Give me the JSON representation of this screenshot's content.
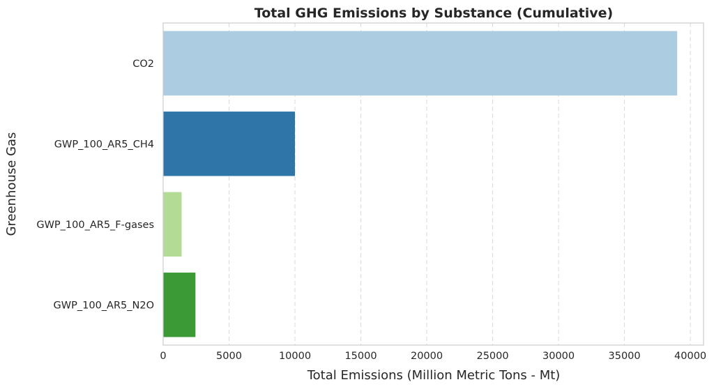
{
  "chart_data": {
    "type": "bar",
    "orientation": "horizontal",
    "title": "Total GHG Emissions by Substance (Cumulative)",
    "xlabel": "Total Emissions (Million Metric Tons - Mt)",
    "ylabel": "Greenhouse Gas",
    "categories": [
      "CO2",
      "GWP_100_AR5_CH4",
      "GWP_100_AR5_F-gases",
      "GWP_100_AR5_N2O"
    ],
    "values": [
      39000,
      10000,
      1400,
      2450
    ],
    "colors": [
      "#abcce1",
      "#2f75a8",
      "#b3db95",
      "#3c9a36"
    ],
    "xlim": [
      0,
      41000
    ],
    "xticks": [
      0,
      5000,
      10000,
      15000,
      20000,
      25000,
      30000,
      35000,
      40000
    ],
    "grid": "x, dashed"
  }
}
